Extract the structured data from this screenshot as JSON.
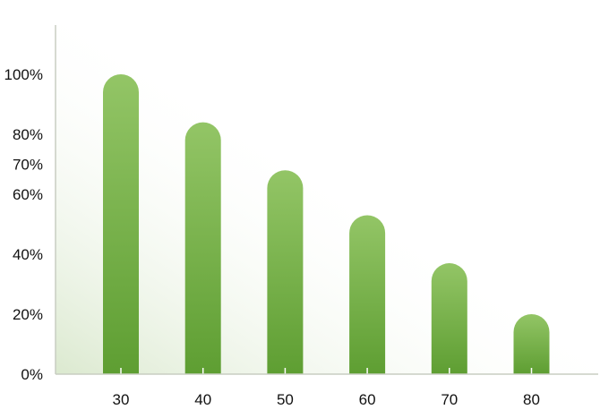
{
  "chart_data": {
    "type": "bar",
    "title": "",
    "xlabel": "",
    "ylabel": "",
    "categories": [
      "30",
      "40",
      "50",
      "60",
      "70",
      "80"
    ],
    "values": [
      100,
      84,
      68,
      53,
      37,
      20
    ],
    "value_unit": "%",
    "ylim": [
      0,
      100
    ],
    "yticks": [
      "0%",
      "20%",
      "40%",
      "60%",
      "70%",
      "80%",
      "100%"
    ],
    "grid": false,
    "legend": "none",
    "colors": {
      "bar_top": "#93c566",
      "bar_bottom": "#5e9e32",
      "plot_shade": "#dbe9cf",
      "axis": "#c8cdc2",
      "text": "#111111"
    }
  }
}
